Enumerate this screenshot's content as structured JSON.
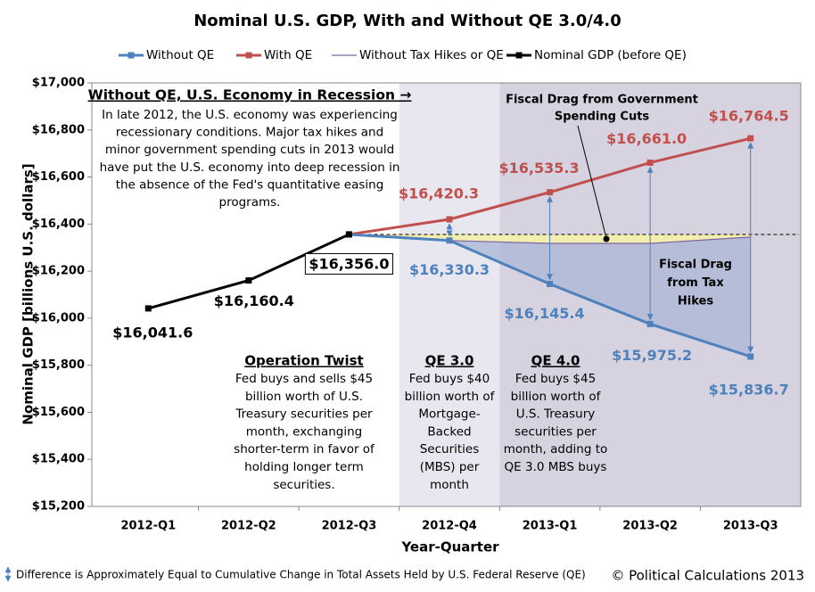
{
  "chart_data": {
    "type": "line",
    "title": "Nominal U.S. GDP, With and Without QE 3.0/4.0",
    "x_label": "Year-Quarter",
    "y_label": "Nominal GDP [billions U.S. dollars]",
    "categories": [
      "2012-Q1",
      "2012-Q2",
      "2012-Q3",
      "2012-Q4",
      "2013-Q1",
      "2013-Q2",
      "2013-Q3"
    ],
    "ylim": [
      15200,
      17000
    ],
    "yticks": [
      {
        "value": 15200,
        "label": "$15,200"
      },
      {
        "value": 15400,
        "label": "$15,400"
      },
      {
        "value": 15600,
        "label": "$15,600"
      },
      {
        "value": 15800,
        "label": "$15,800"
      },
      {
        "value": 16000,
        "label": "$16,000"
      },
      {
        "value": 16200,
        "label": "$16,200"
      },
      {
        "value": 16400,
        "label": "$16,400"
      },
      {
        "value": 16600,
        "label": "$16,600"
      },
      {
        "value": 16800,
        "label": "$16,800"
      },
      {
        "value": 17000,
        "label": "$17,000"
      }
    ],
    "series": [
      {
        "name": "Without QE",
        "color": "#4f81bd",
        "values": [
          null,
          null,
          16356.0,
          16330.3,
          16145.4,
          15975.2,
          15836.7
        ],
        "value_labels": [
          null,
          null,
          null,
          "$16,330.3",
          "$16,145.4",
          "$15,975.2",
          "$15,836.7"
        ]
      },
      {
        "name": "With QE",
        "color": "#c0504d",
        "values": [
          null,
          null,
          16356.0,
          16420.3,
          16535.3,
          16661.0,
          16764.5
        ],
        "value_labels": [
          null,
          null,
          null,
          "$16,420.3",
          "$16,535.3",
          "$16,661.0",
          "$16,764.5"
        ]
      },
      {
        "name": "Without Tax Hikes or QE",
        "color": "#8064a2",
        "values": [
          null,
          null,
          16356.0,
          16330,
          16318,
          16318,
          16345
        ]
      },
      {
        "name": "Nominal GDP (before QE)",
        "color": "#000000",
        "values": [
          16041.6,
          16160.4,
          16356.0,
          null,
          null,
          null,
          null
        ],
        "value_labels": [
          "$16,041.6",
          "$16,160.4",
          "$16,356.0",
          null,
          null,
          null,
          null
        ]
      }
    ],
    "annotations": [
      {
        "title": "Without QE, U.S. Economy in Recession →",
        "lines": [
          "In late 2012, the U.S. economy was experiencing",
          "recessionary conditions.  Major tax hikes and",
          "minor government spending cuts in 2013 would",
          "have put the U.S. economy into deep recession in",
          "the absence of the Fed's quantitative easing",
          "programs."
        ]
      },
      {
        "title": "Operation Twist",
        "lines": [
          "Fed buys and sells $45",
          "billion worth of U.S.",
          "Treasury securities per",
          "month, exchanging",
          "shorter-term in favor of",
          "holding longer term",
          "securities."
        ]
      },
      {
        "title": "QE 3.0",
        "lines": [
          "Fed buys $40",
          "billion worth of",
          "Mortgage-",
          "Backed",
          "Securities",
          "(MBS) per",
          "month"
        ]
      },
      {
        "title": "QE 4.0",
        "lines": [
          "Fed buys $45",
          "billion worth of",
          "U.S. Treasury",
          "securities per",
          "month, adding to",
          "QE 3.0 MBS buys"
        ]
      },
      {
        "lines": [
          "Fiscal Drag from Government",
          "Spending Cuts"
        ]
      },
      {
        "lines": [
          "Fiscal Drag",
          "from Tax",
          "Hikes"
        ]
      }
    ],
    "footnote": "Difference is Approximately Equal to Cumulative Change in Total Assets Held by U.S. Federal Reserve (QE)",
    "credit": "© Political Calculations 2013"
  }
}
